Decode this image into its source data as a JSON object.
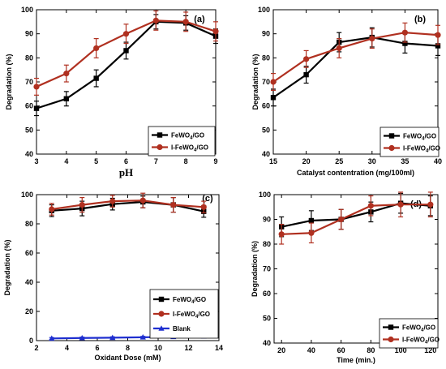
{
  "chart_data": [
    {
      "type": "line",
      "panel": "(a)",
      "xlabel": "pH",
      "ylabel": "Degradation (%)",
      "xlim": [
        3,
        9
      ],
      "ylim": [
        40,
        100
      ],
      "xticks": [
        3,
        4,
        5,
        6,
        7,
        8,
        9
      ],
      "yticks": [
        40,
        50,
        60,
        70,
        80,
        90,
        100
      ],
      "legend_position": "bottom-right",
      "series": [
        {
          "name": "FeWO",
          "sub": "4",
          "suffix": "/GO",
          "color": "#000000",
          "marker": "square",
          "x": [
            3,
            4,
            5,
            6,
            7,
            8,
            9
          ],
          "values": [
            59,
            63,
            71.5,
            83,
            95,
            94.5,
            89
          ],
          "err": [
            3,
            3,
            3.5,
            3.5,
            3,
            3,
            3
          ]
        },
        {
          "name": "I-FeWO",
          "sub": "4",
          "suffix": "/GO",
          "color": "#b03020",
          "marker": "circle",
          "x": [
            3,
            4,
            5,
            6,
            7,
            8,
            9
          ],
          "values": [
            68,
            73.5,
            84,
            90,
            95.5,
            95,
            91
          ],
          "err": [
            3.5,
            3.5,
            4,
            4,
            4,
            4,
            4
          ]
        }
      ]
    },
    {
      "type": "line",
      "panel": "(b)",
      "xlabel": "Catalyst contentration (mg/100ml)",
      "ylabel": "Degradation (%)",
      "xlim": [
        15,
        40
      ],
      "ylim": [
        40,
        100
      ],
      "xticks": [
        15,
        20,
        25,
        30,
        35,
        40
      ],
      "yticks": [
        40,
        50,
        60,
        70,
        80,
        90,
        100
      ],
      "legend_position": "bottom-right",
      "series": [
        {
          "name": "FeWO",
          "sub": "4",
          "suffix": "/GO",
          "color": "#000000",
          "marker": "square",
          "x": [
            15,
            20,
            25,
            30,
            35,
            40
          ],
          "values": [
            63.5,
            73,
            86.5,
            88.5,
            86,
            85
          ],
          "err": [
            3.5,
            3.5,
            4,
            4,
            4,
            4
          ]
        },
        {
          "name": "I-FeWO",
          "sub": "4",
          "suffix": "/GO",
          "color": "#b03020",
          "marker": "circle",
          "x": [
            15,
            20,
            25,
            30,
            35,
            40
          ],
          "values": [
            70,
            79.5,
            84,
            88,
            90.5,
            89.5
          ],
          "err": [
            3.5,
            3.5,
            4,
            4,
            4,
            4
          ]
        }
      ]
    },
    {
      "type": "line",
      "panel": "(c)",
      "xlabel": "Oxidant Dose (mM)",
      "ylabel": "Degradation (%)",
      "xlim": [
        2,
        14
      ],
      "ylim": [
        0,
        100
      ],
      "xticks": [
        2,
        4,
        6,
        8,
        10,
        12,
        14
      ],
      "yticks": [
        0,
        20,
        40,
        60,
        80,
        100
      ],
      "legend_position": "bottom-right",
      "series": [
        {
          "name": "FeWO",
          "sub": "4",
          "suffix": "/GO",
          "color": "#000000",
          "marker": "square",
          "x": [
            3,
            5,
            7,
            9,
            11,
            13
          ],
          "values": [
            89,
            90.5,
            93.5,
            95,
            93,
            88.5
          ],
          "err": [
            4,
            5,
            4,
            4,
            5,
            4
          ]
        },
        {
          "name": "I-FeWO",
          "sub": "4",
          "suffix": "/GO",
          "color": "#b03020",
          "marker": "circle",
          "x": [
            3,
            5,
            7,
            9,
            11,
            13
          ],
          "values": [
            90,
            93,
            95.5,
            96,
            93,
            91.5
          ],
          "err": [
            4,
            5,
            4,
            5,
            5,
            4
          ]
        },
        {
          "name": "Blank",
          "sub": "",
          "suffix": "",
          "color": "#1f2fd0",
          "marker": "triangle",
          "x": [
            3,
            5,
            7,
            9,
            11,
            13
          ],
          "values": [
            1.5,
            1.8,
            2,
            2.3,
            2.6,
            3
          ],
          "err": [
            0.6,
            0.6,
            0.6,
            0.6,
            0.6,
            0.6
          ]
        }
      ]
    },
    {
      "type": "line",
      "panel": "(d)",
      "xlabel": "Time (min.)",
      "ylabel": "Degradation (%)",
      "xlim": [
        15,
        125
      ],
      "ylim": [
        40,
        100
      ],
      "xticks": [
        20,
        40,
        60,
        80,
        100,
        120
      ],
      "yticks": [
        40,
        50,
        60,
        70,
        80,
        90,
        100
      ],
      "legend_position": "bottom-right",
      "series": [
        {
          "name": "FeWO",
          "sub": "4",
          "suffix": "/GO",
          "color": "#000000",
          "marker": "square",
          "x": [
            20,
            40,
            60,
            80,
            100,
            120
          ],
          "values": [
            87,
            89.5,
            90,
            93,
            96.5,
            95.5
          ],
          "err": [
            4,
            4,
            4,
            4,
            4,
            4
          ]
        },
        {
          "name": "I-FeWO",
          "sub": "4",
          "suffix": "/GO",
          "color": "#b03020",
          "marker": "circle",
          "x": [
            20,
            40,
            60,
            80,
            100,
            120
          ],
          "values": [
            84,
            84.5,
            90,
            95.5,
            96,
            96
          ],
          "err": [
            4,
            4,
            4,
            4,
            5,
            5
          ]
        }
      ]
    }
  ]
}
